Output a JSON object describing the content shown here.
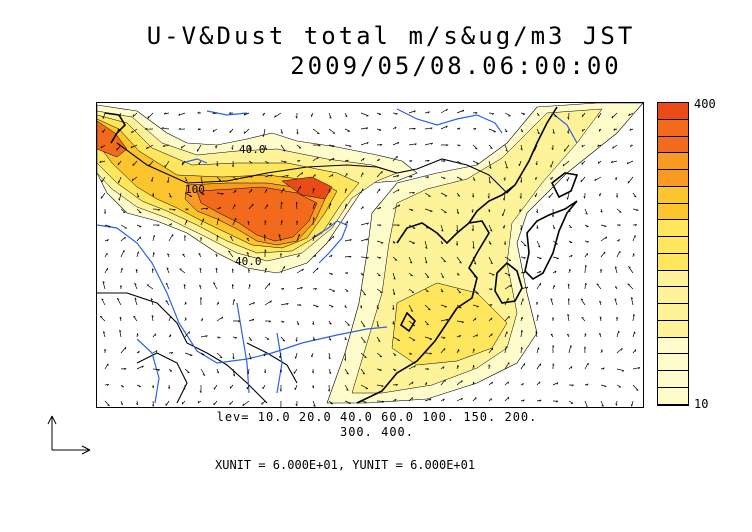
{
  "header": {
    "title_line1": "U-V&Dust total m/s&ug/m3 JST",
    "title_line2": "2009/05/08.06:00:00"
  },
  "legend": {
    "levels_line1": "lev= 10.0 20.0 40.0 60.0 100. 150. 200.",
    "levels_line2": "300. 400.",
    "units_line": "XUNIT = 6.000E+01, YUNIT = 6.000E+01",
    "colorbar_max": "400",
    "colorbar_min": "10"
  },
  "contour_labels": {
    "upper": "40.0",
    "mid": "100",
    "lower": "40.0"
  },
  "colors": {
    "c1": "#fffccc",
    "c2": "#fff39a",
    "c3": "#ffe65c",
    "c4": "#fcc42d",
    "c5": "#f99a23",
    "c6": "#f26a1c",
    "c7": "#ea4a17",
    "river": "#2d62e6",
    "coast": "#000000"
  }
}
